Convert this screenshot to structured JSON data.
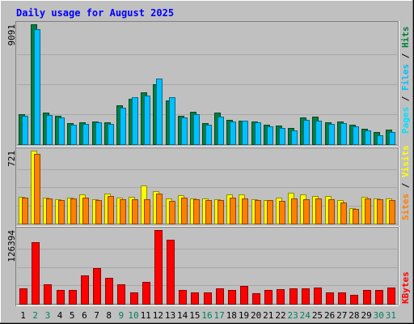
{
  "chart_data": {
    "type": "bar",
    "title": "Daily usage for August 2025",
    "categories": [
      "1",
      "2",
      "3",
      "4",
      "5",
      "6",
      "7",
      "8",
      "9",
      "10",
      "11",
      "12",
      "13",
      "14",
      "15",
      "16",
      "17",
      "18",
      "19",
      "20",
      "21",
      "22",
      "23",
      "24",
      "25",
      "26",
      "27",
      "28",
      "29",
      "30",
      "31"
    ],
    "weekend_days": [
      "2",
      "3",
      "9",
      "10",
      "16",
      "17",
      "23",
      "24",
      "30",
      "31"
    ],
    "panels": [
      {
        "id": "pages-files-hits",
        "max_label": "9091",
        "ylim": [
          0,
          9091
        ],
        "series": [
          {
            "name": "Hits",
            "color": "#008040",
            "values": [
              2300,
              9091,
              2400,
              2150,
              1600,
              1650,
              1750,
              1650,
              2950,
              3450,
              3950,
              4550,
              3300,
              2150,
              2450,
              1600,
              2400,
              1850,
              1800,
              1750,
              1500,
              1400,
              1250,
              2050,
              2100,
              1650,
              1700,
              1500,
              1150,
              900,
              1100
            ]
          },
          {
            "name": "Files",
            "color": "#00c0ff",
            "values": [
              2150,
              8700,
              2200,
              2050,
              1500,
              1550,
              1650,
              1550,
              2750,
              3550,
              3700,
              4950,
              3550,
              2050,
              2250,
              1500,
              2100,
              1750,
              1800,
              1650,
              1350,
              1250,
              1050,
              1850,
              1800,
              1550,
              1600,
              1350,
              1050,
              700,
              900
            ]
          },
          {
            "name": "Pages",
            "color": "#00e0ff",
            "values": []
          }
        ]
      },
      {
        "id": "sites-visits",
        "max_label": "721",
        "ylim": [
          0,
          721
        ],
        "series": [
          {
            "name": "Visits",
            "color": "#ffff00",
            "values": [
              265,
              721,
              260,
              240,
              255,
              290,
              240,
              295,
              260,
              265,
              380,
              320,
              245,
              280,
              245,
              245,
              240,
              285,
              285,
              240,
              235,
              255,
              305,
              290,
              275,
              270,
              235,
              155,
              265,
              250,
              250
            ]
          },
          {
            "name": "Sites",
            "color": "#ff8000",
            "values": [
              260,
              690,
              250,
              230,
              250,
              260,
              230,
              275,
              240,
              240,
              240,
              300,
              225,
              260,
              240,
              235,
              235,
              260,
              250,
              235,
              230,
              225,
              250,
              240,
              250,
              240,
              210,
              145,
              250,
              240,
              235
            ]
          }
        ]
      },
      {
        "id": "kbytes",
        "max_label": "126394",
        "ylim": [
          0,
          126394
        ],
        "series": [
          {
            "name": "KBytes",
            "color": "#ff0000",
            "values": [
              27000,
              106000,
              34000,
              24000,
              23000,
              48000,
              61000,
              45000,
              33000,
              20000,
              38000,
              126394,
              110000,
              23000,
              20000,
              20000,
              26000,
              23000,
              30000,
              18000,
              23000,
              25000,
              26000,
              27000,
              28000,
              20000,
              20000,
              15000,
              24000,
              24000,
              28000
            ]
          }
        ]
      }
    ],
    "legend_groups": [
      [
        {
          "text": "Pages",
          "color": "#00e0ff"
        },
        {
          "text": "Files",
          "color": "#00c0ff"
        },
        {
          "text": "Hits",
          "color": "#008040"
        }
      ],
      [
        {
          "text": "Sites",
          "color": "#ff8000"
        },
        {
          "text": "Visits",
          "color": "#ffff00"
        }
      ],
      [
        {
          "text": "KBytes",
          "color": "#ff0000"
        }
      ]
    ],
    "colors": {
      "background": "#c0c0c0",
      "title": "#0000ff",
      "weekday_label": "#000000",
      "weekend_label": "#00805c"
    }
  }
}
